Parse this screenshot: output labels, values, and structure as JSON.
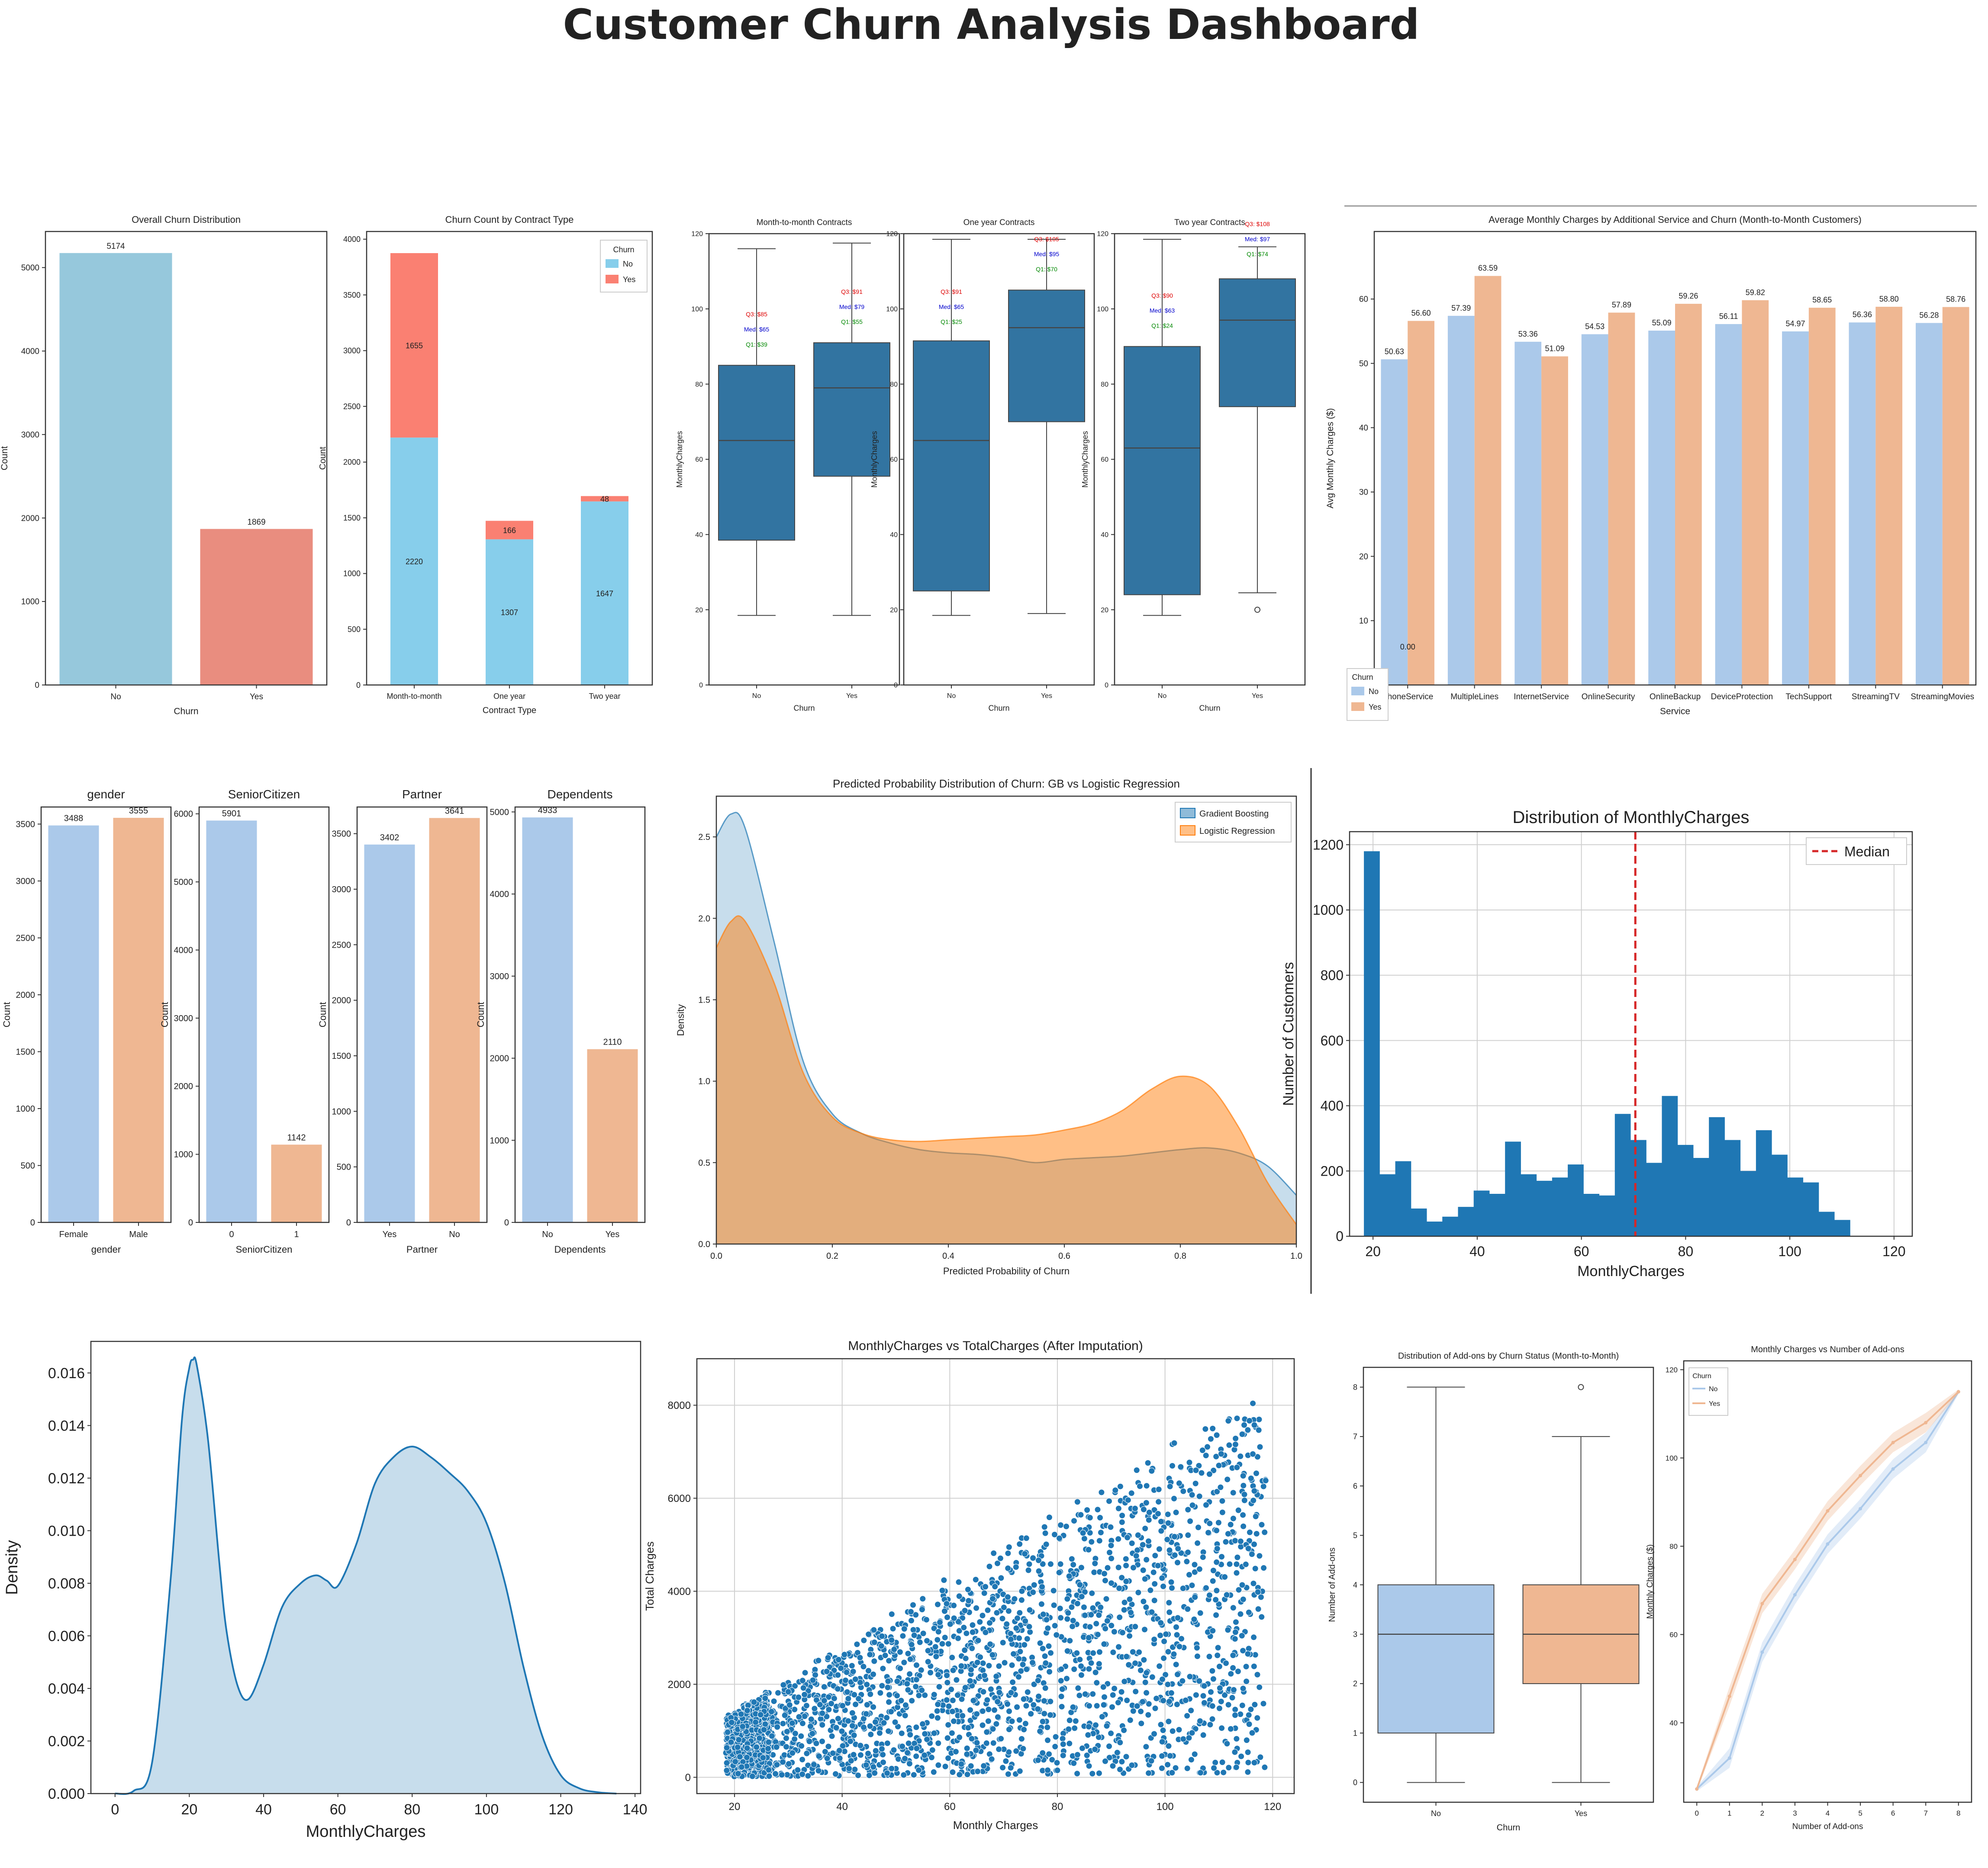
{
  "dashboard": {
    "title": "Customer Churn Analysis Dashboard"
  },
  "colors": {
    "sky": "#96c8dc",
    "salmon": "#e98d7f",
    "sky2": "#87ceeb",
    "tomato": "#fa8072",
    "boxblue": "#3274a1",
    "pastel_blue": "#abc9ea",
    "pastel_orange": "#efb792",
    "hist_blue": "#1f77b4",
    "lr_orange": "#ff7f0e",
    "median_red": "#d62728"
  },
  "chart_data": [
    {
      "id": "overall_churn",
      "type": "bar",
      "title": "Overall Churn Distribution",
      "xlabel": "Churn",
      "ylabel": "Count",
      "categories": [
        "No",
        "Yes"
      ],
      "values": [
        5174,
        1869
      ],
      "data_labels": [
        "5174",
        "1869"
      ],
      "ylim": [
        0,
        5432
      ],
      "yticks": [
        0,
        1000,
        2000,
        3000,
        4000,
        5000
      ]
    },
    {
      "id": "churn_by_contract",
      "type": "bar",
      "stacked": true,
      "title": "Churn Count by Contract Type",
      "xlabel": "Contract Type",
      "ylabel": "Count",
      "categories": [
        "Month-to-month",
        "One year",
        "Two year"
      ],
      "series": [
        {
          "name": "No",
          "values": [
            2220,
            1307,
            1647
          ],
          "labels": [
            "2220",
            "1307",
            "1647"
          ]
        },
        {
          "name": "Yes",
          "values": [
            1655,
            166,
            48
          ],
          "labels": [
            "1655",
            "166",
            "48"
          ]
        }
      ],
      "legend_title": "Churn",
      "legend": "top-right",
      "ylim": [
        0,
        4069
      ],
      "yticks": [
        0,
        500,
        1000,
        1500,
        2000,
        2500,
        3000,
        3500,
        4000
      ]
    },
    {
      "id": "box_month",
      "type": "box",
      "title": "Month-to-month Contracts",
      "xlabel": "Churn",
      "ylabel": "MonthlyCharges",
      "categories": [
        "No",
        "Yes"
      ],
      "boxes": [
        {
          "q1": 38.5,
          "median": 65,
          "q3": 85,
          "wlo": 18.5,
          "whi": 116,
          "outliers": []
        },
        {
          "q1": 55.5,
          "median": 79,
          "q3": 91,
          "wlo": 18.5,
          "whi": 117.5,
          "outliers": []
        }
      ],
      "annotations": [
        [
          "Q3: $85",
          "Med: $65",
          "Q1: $39"
        ],
        [
          "Q3: $91",
          "Med: $79",
          "Q1: $55"
        ]
      ],
      "annotation_y": [
        [
          98,
          94,
          90
        ],
        [
          104,
          100,
          96
        ]
      ],
      "ylim": [
        0,
        120
      ],
      "yticks": [
        0,
        20,
        40,
        60,
        80,
        100,
        120
      ]
    },
    {
      "id": "box_one",
      "type": "box",
      "title": "One year Contracts",
      "xlabel": "Churn",
      "ylabel": "MonthlyCharges",
      "categories": [
        "No",
        "Yes"
      ],
      "boxes": [
        {
          "q1": 25,
          "median": 65,
          "q3": 91.5,
          "wlo": 18.5,
          "whi": 118.5,
          "outliers": []
        },
        {
          "q1": 70,
          "median": 95,
          "q3": 105,
          "wlo": 19,
          "whi": 118.5,
          "outliers": []
        }
      ],
      "annotations": [
        [
          "Q3: $91",
          "Med: $65",
          "Q1: $25"
        ],
        [
          "Q3: $105",
          "Med: $95",
          "Q1: $70"
        ]
      ],
      "annotation_y": [
        [
          104,
          100,
          96
        ],
        [
          118,
          114,
          110
        ]
      ],
      "ylim": [
        0,
        120
      ],
      "yticks": [
        0,
        20,
        40,
        60,
        80,
        100,
        120
      ]
    },
    {
      "id": "box_two",
      "type": "box",
      "title": "Two year Contracts",
      "xlabel": "Churn",
      "ylabel": "MonthlyCharges",
      "categories": [
        "No",
        "Yes"
      ],
      "boxes": [
        {
          "q1": 24,
          "median": 63,
          "q3": 90,
          "wlo": 18.5,
          "whi": 118.5,
          "outliers": []
        },
        {
          "q1": 74,
          "median": 97,
          "q3": 108,
          "wlo": 24.5,
          "whi": 116.5,
          "outliers": [
            20
          ]
        }
      ],
      "annotations": [
        [
          "Q3: $90",
          "Med: $63",
          "Q1: $24"
        ],
        [
          "Q3: $108",
          "Med: $97",
          "Q1: $74"
        ]
      ],
      "annotation_y": [
        [
          103,
          99,
          95
        ],
        [
          122,
          118,
          114
        ]
      ],
      "ylim": [
        0,
        120
      ],
      "yticks": [
        0,
        20,
        40,
        60,
        80,
        100,
        120
      ]
    },
    {
      "id": "avg_charges_services",
      "type": "bar",
      "title": "Average Monthly Charges by Additional Service and Churn (Month-to-Month Customers)",
      "xlabel": "Service",
      "ylabel": "Avg Monthly Charges ($)",
      "categories": [
        "PhoneService",
        "MultipleLines",
        "InternetService",
        "OnlineSecurity",
        "OnlineBackup",
        "DeviceProtection",
        "TechSupport",
        "StreamingTV",
        "StreamingMovies"
      ],
      "series": [
        {
          "name": "No",
          "values": [
            50.63,
            57.39,
            53.36,
            54.53,
            55.09,
            56.11,
            54.97,
            56.36,
            56.28
          ],
          "labels": [
            "50.63",
            "57.39",
            "53.36",
            "54.53",
            "55.09",
            "56.11",
            "54.97",
            "56.36",
            "56.28"
          ]
        },
        {
          "name": "Yes",
          "values": [
            56.6,
            63.59,
            51.09,
            57.89,
            59.26,
            59.82,
            58.65,
            58.8,
            58.76
          ],
          "labels": [
            "56.60",
            "63.59",
            "51.09",
            "57.89",
            "59.26",
            "59.82",
            "58.65",
            "58.80",
            "58.76"
          ]
        }
      ],
      "extra_label": "0.00",
      "legend_title": "Churn",
      "legend": "lower-left",
      "ylim": [
        0,
        70.5
      ],
      "yticks": [
        0,
        10,
        20,
        30,
        40,
        50,
        60
      ]
    },
    {
      "id": "gender",
      "type": "bar",
      "title": "gender",
      "xlabel": "gender",
      "ylabel": "Count",
      "categories": [
        "Female",
        "Male"
      ],
      "values": [
        3488,
        3555
      ],
      "data_labels": [
        "3488",
        "3555"
      ],
      "ylim": [
        0,
        3650
      ],
      "yticks": [
        0,
        500,
        1000,
        1500,
        2000,
        2500,
        3000,
        3500
      ]
    },
    {
      "id": "senior",
      "type": "bar",
      "title": "SeniorCitizen",
      "xlabel": "SeniorCitizen",
      "ylabel": "Count",
      "categories": [
        "0",
        "1"
      ],
      "values": [
        5901,
        1142
      ],
      "data_labels": [
        "5901",
        "1142"
      ],
      "ylim": [
        0,
        6100
      ],
      "yticks": [
        0,
        1000,
        2000,
        3000,
        4000,
        5000,
        6000
      ]
    },
    {
      "id": "partner",
      "type": "bar",
      "title": "Partner",
      "xlabel": "Partner",
      "ylabel": "Count",
      "categories": [
        "Yes",
        "No"
      ],
      "values": [
        3402,
        3641
      ],
      "data_labels": [
        "3402",
        "3641"
      ],
      "ylim": [
        0,
        3740
      ],
      "yticks": [
        0,
        500,
        1000,
        1500,
        2000,
        2500,
        3000,
        3500
      ]
    },
    {
      "id": "dependents",
      "type": "bar",
      "title": "Dependents",
      "xlabel": "Dependents",
      "ylabel": "Count",
      "categories": [
        "No",
        "Yes"
      ],
      "values": [
        4933,
        2110
      ],
      "data_labels": [
        "4933",
        "2110"
      ],
      "ylim": [
        0,
        5060
      ],
      "yticks": [
        0,
        1000,
        2000,
        3000,
        4000,
        5000
      ]
    },
    {
      "id": "pred_prob",
      "type": "area",
      "title": "Predicted Probability Distribution of Churn: GB vs Logistic Regression",
      "xlabel": "Predicted Probability of Churn",
      "ylabel": "Density",
      "x": [
        0,
        0.025,
        0.05,
        0.1,
        0.15,
        0.2,
        0.25,
        0.3,
        0.35,
        0.4,
        0.45,
        0.5,
        0.55,
        0.6,
        0.65,
        0.7,
        0.75,
        0.8,
        0.85,
        0.9,
        0.95,
        1.0
      ],
      "series": [
        {
          "name": "Gradient Boosting",
          "values": [
            2.5,
            2.64,
            2.55,
            1.85,
            1.12,
            0.8,
            0.68,
            0.62,
            0.58,
            0.56,
            0.55,
            0.53,
            0.5,
            0.52,
            0.53,
            0.54,
            0.56,
            0.58,
            0.59,
            0.56,
            0.48,
            0.3
          ]
        },
        {
          "name": "Logistic Regression",
          "values": [
            1.82,
            1.98,
            1.98,
            1.6,
            1.05,
            0.78,
            0.68,
            0.64,
            0.63,
            0.64,
            0.65,
            0.66,
            0.67,
            0.7,
            0.74,
            0.82,
            0.95,
            1.03,
            0.97,
            0.72,
            0.38,
            0.12
          ]
        }
      ],
      "legend": "top-right",
      "xlim": [
        0,
        1
      ],
      "ylim": [
        0,
        2.75
      ],
      "xticks": [
        0.0,
        0.2,
        0.4,
        0.6,
        0.8,
        1.0
      ],
      "yticks": [
        0.0,
        0.5,
        1.0,
        1.5,
        2.0,
        2.5
      ],
      "xtick_labels": [
        "0.0",
        "0.2",
        "0.4",
        "0.6",
        "0.8",
        "1.0"
      ],
      "ytick_labels": [
        "0.0",
        "0.5",
        "1.0",
        "1.5",
        "2.0",
        "2.5"
      ]
    },
    {
      "id": "hist_monthly",
      "type": "bar",
      "subtype": "histogram",
      "title": "Distribution of MonthlyCharges",
      "xlabel": "MonthlyCharges",
      "ylabel": "Number of Customers",
      "bin_start": 18.25,
      "bin_width": 3.01,
      "values": [
        1180,
        190,
        230,
        85,
        45,
        60,
        90,
        140,
        130,
        290,
        190,
        170,
        180,
        220,
        130,
        125,
        375,
        295,
        225,
        430,
        280,
        240,
        365,
        295,
        200,
        325,
        250,
        180,
        165,
        75,
        50
      ],
      "median": 70.35,
      "median_label": "Median",
      "legend": "top-right",
      "grid": true,
      "xlim": [
        15.5,
        123.5
      ],
      "ylim": [
        0,
        1240
      ],
      "xticks": [
        20,
        40,
        60,
        80,
        100,
        120
      ],
      "yticks": [
        0,
        200,
        400,
        600,
        800,
        1000,
        1200
      ]
    },
    {
      "id": "kde_monthly",
      "type": "area",
      "title": "",
      "xlabel": "MonthlyCharges",
      "ylabel": "Density",
      "x": [
        0,
        5,
        10,
        15,
        18,
        20,
        21,
        22,
        25,
        28,
        30,
        33,
        36,
        40,
        45,
        50,
        54,
        57,
        60,
        65,
        70,
        75,
        80,
        85,
        90,
        95,
        100,
        105,
        110,
        115,
        120,
        125,
        130,
        135
      ],
      "values": [
        0,
        0.0001,
        0.0012,
        0.0082,
        0.0142,
        0.0162,
        0.0165,
        0.0163,
        0.0135,
        0.0089,
        0.0062,
        0.0041,
        0.0036,
        0.0049,
        0.0071,
        0.008,
        0.0083,
        0.0081,
        0.0079,
        0.0095,
        0.0118,
        0.0128,
        0.0132,
        0.0128,
        0.0122,
        0.0115,
        0.0103,
        0.008,
        0.0048,
        0.0022,
        0.0007,
        0.0002,
        5e-05,
        0
      ],
      "xlim": [
        -6.5,
        141.5
      ],
      "ylim": [
        0,
        0.0172
      ],
      "xticks": [
        0,
        20,
        40,
        60,
        80,
        100,
        120,
        140
      ],
      "yticks": [
        0.0,
        0.002,
        0.004,
        0.006,
        0.008,
        0.01,
        0.012,
        0.014,
        0.016
      ],
      "ytick_labels": [
        "0.000",
        "0.002",
        "0.004",
        "0.006",
        "0.008",
        "0.010",
        "0.012",
        "0.014",
        "0.016"
      ]
    },
    {
      "id": "scatter_charges",
      "type": "scatter",
      "title": "MonthlyCharges vs TotalCharges (After Imputation)",
      "xlabel": "Monthly Charges",
      "ylabel": "Total Charges",
      "xlim": [
        13,
        124
      ],
      "ylim": [
        -350,
        9000
      ],
      "xticks": [
        20,
        40,
        60,
        80,
        100,
        120
      ],
      "yticks": [
        0,
        2000,
        4000,
        6000,
        8000
      ],
      "grid": true,
      "x_range": [
        18.25,
        118.75
      ],
      "tenure_max": 72,
      "point_count": 2600
    },
    {
      "id": "addons_box",
      "type": "box",
      "title": "Distribution of Add-ons by Churn Status (Month-to-Month)",
      "xlabel": "Churn",
      "ylabel": "Number of Add-ons",
      "categories": [
        "No",
        "Yes"
      ],
      "boxes": [
        {
          "q1": 1,
          "median": 3,
          "q3": 4,
          "wlo": 0,
          "whi": 8,
          "outliers": []
        },
        {
          "q1": 2,
          "median": 3,
          "q3": 4,
          "wlo": 0,
          "whi": 7,
          "outliers": [
            8
          ]
        }
      ],
      "ylim": [
        -0.4,
        8.4
      ],
      "yticks": [
        0,
        1,
        2,
        3,
        4,
        5,
        6,
        7,
        8
      ]
    },
    {
      "id": "addons_line",
      "type": "line",
      "title": "Monthly Charges vs Number of Add-ons",
      "xlabel": "Number of Add-ons",
      "ylabel": "Monthly Charges ($)",
      "x": [
        0,
        1,
        2,
        3,
        4,
        5,
        6,
        7,
        8
      ],
      "series": [
        {
          "name": "No",
          "values": [
            25,
            32,
            56,
            69,
            80.5,
            88.5,
            97.5,
            103.5,
            115
          ]
        },
        {
          "name": "Yes",
          "values": [
            25,
            46,
            67,
            77,
            88,
            96,
            103.5,
            108,
            115
          ]
        }
      ],
      "legend_title": "Churn",
      "legend": "top-left",
      "xlim": [
        -0.4,
        8.4
      ],
      "ylim": [
        22,
        122
      ],
      "xticks": [
        0,
        1,
        2,
        3,
        4,
        5,
        6,
        7,
        8
      ],
      "yticks": [
        40,
        60,
        80,
        100,
        120
      ]
    }
  ]
}
